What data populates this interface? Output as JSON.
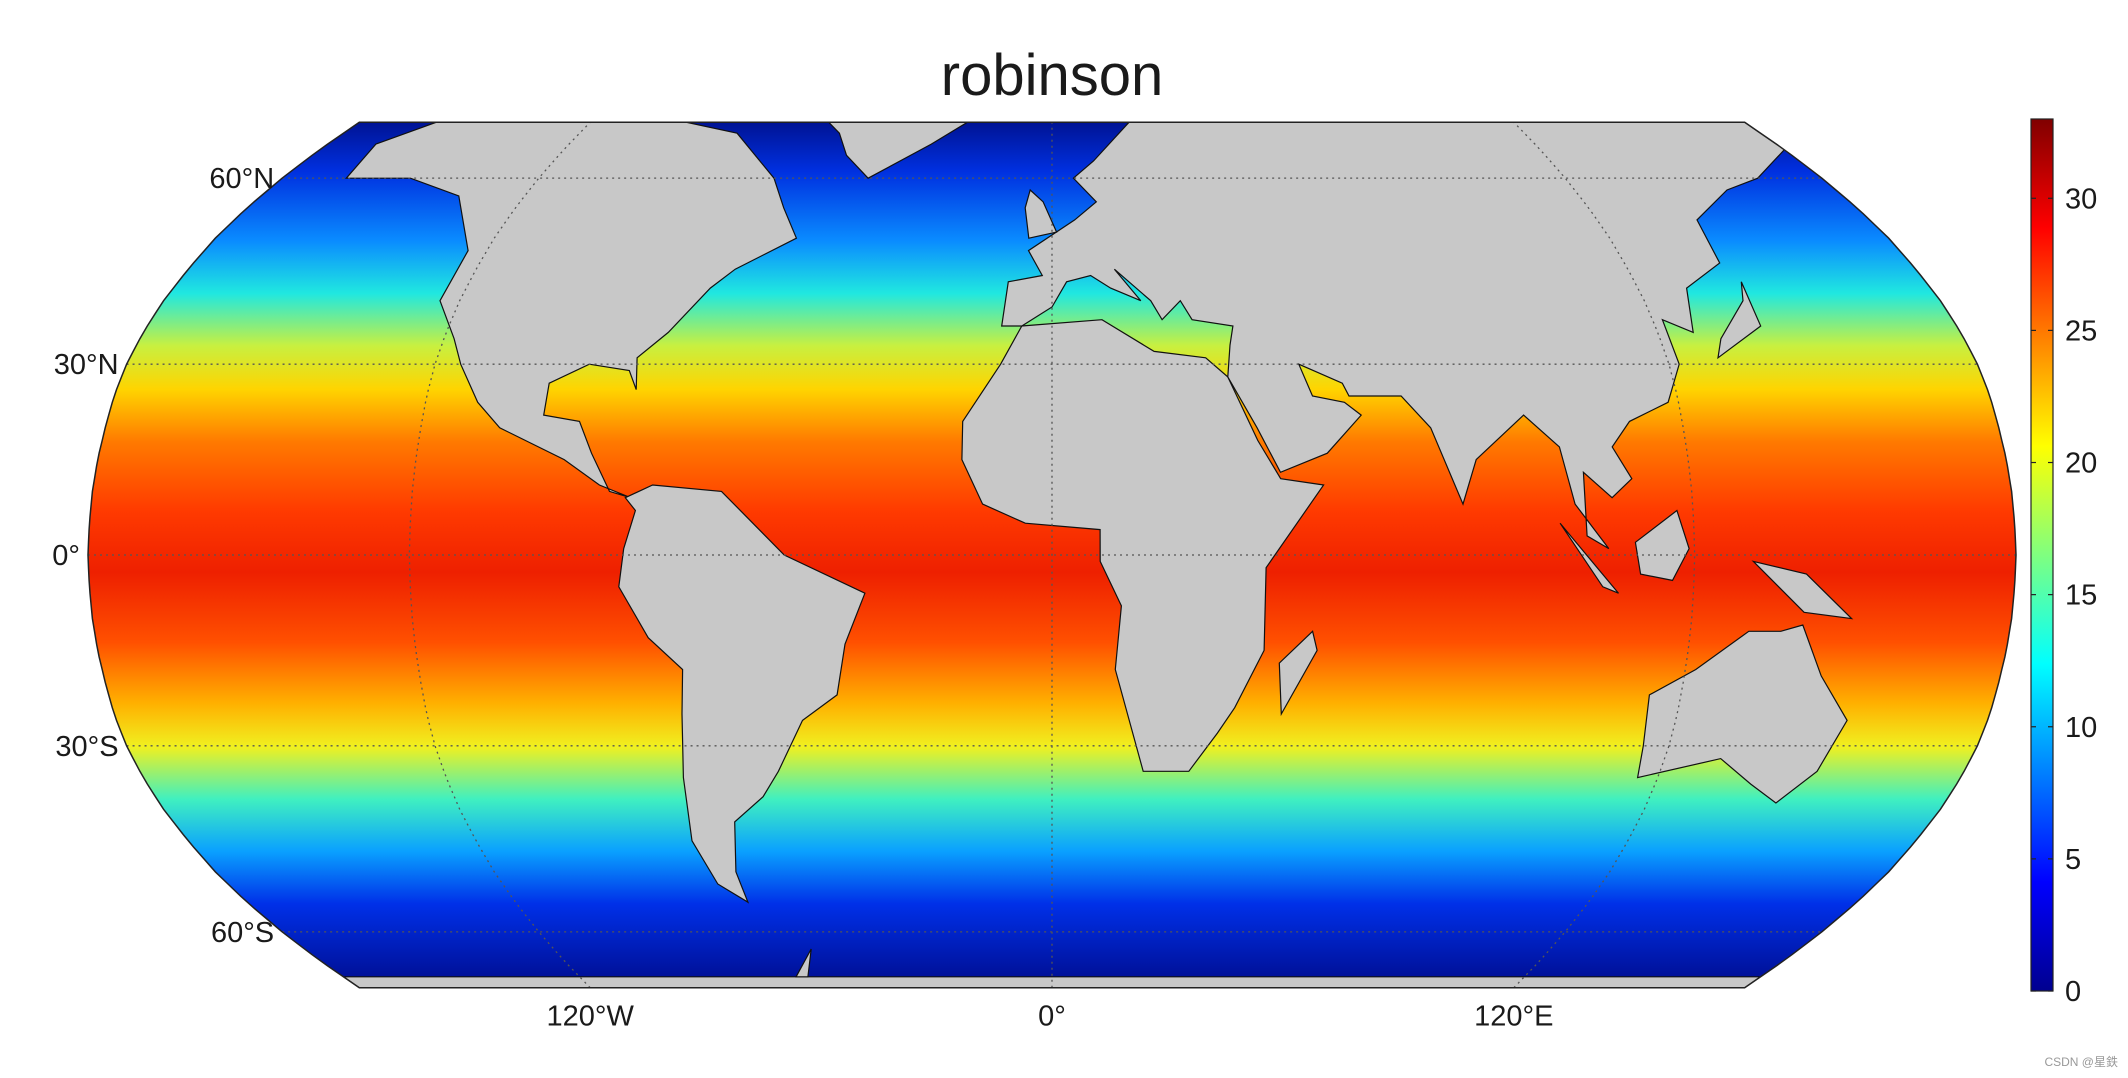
{
  "map": {
    "title": "robinson",
    "projection": "robinson",
    "lat_ticks": [
      {
        "value": 60,
        "label": "60°N"
      },
      {
        "value": 30,
        "label": "30°N"
      },
      {
        "value": 0,
        "label": "0°"
      },
      {
        "value": -30,
        "label": "30°S"
      },
      {
        "value": -60,
        "label": "60°S"
      }
    ],
    "lon_ticks": [
      {
        "value": -120,
        "label": "120°W"
      },
      {
        "value": 0,
        "label": "0°"
      },
      {
        "value": 120,
        "label": "120°E"
      }
    ]
  },
  "colorbar": {
    "lim": [
      0,
      33
    ],
    "ticks": [
      0,
      5,
      10,
      15,
      20,
      25,
      30
    ],
    "colormap": "jet"
  },
  "watermark": "CSDN @星鉄"
}
